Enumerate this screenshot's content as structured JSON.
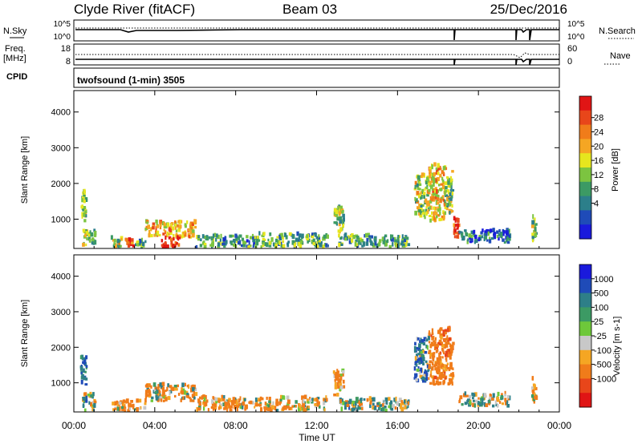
{
  "header": {
    "station": "Clyde River (fitACF)",
    "beam": "Beam 03",
    "date": "25/Dec/2016"
  },
  "nsky": {
    "label": "N.Sky",
    "ticks": [
      "10^5",
      "10^0"
    ],
    "right_ticks": [
      "10^5",
      "10^0"
    ],
    "right_label": "N.Search"
  },
  "freq": {
    "label_top": "Freq.",
    "label_unit": "[MHz]",
    "ticks": [
      "18",
      "8"
    ],
    "right_ticks": [
      "60",
      "0"
    ],
    "right_label": "Nave"
  },
  "cpid": {
    "label": "CPID",
    "text": "twofsound (1-min) 3505"
  },
  "x_axis": {
    "label": "Time UT",
    "ticks": [
      "00:00",
      "04:00",
      "08:00",
      "12:00",
      "16:00",
      "20:00",
      "00:00"
    ]
  },
  "power_panel": {
    "ylabel": "Slant Range [km]",
    "yticks": [
      "4000",
      "3000",
      "2000",
      "1000"
    ],
    "colorbar_label": "Power [dB]",
    "colorbar_ticks": [
      "28",
      "24",
      "20",
      "16",
      "12",
      "8",
      "4"
    ],
    "colors": [
      "#1a1adc",
      "#1f4bb8",
      "#2c7f8a",
      "#3c9a64",
      "#7cc440",
      "#e6e61e",
      "#f5a623",
      "#f07c1a",
      "#e8461a",
      "#e01515"
    ]
  },
  "velocity_panel": {
    "ylabel": "Slant Range [km]",
    "yticks": [
      "4000",
      "3000",
      "2000",
      "1000"
    ],
    "colorbar_label": "Velocity [m s-1]",
    "colorbar_ticks": [
      "1000",
      "500",
      "100",
      "25",
      "-25",
      "-100",
      "-500",
      "-1000"
    ],
    "colors": [
      "#1a1adc",
      "#1f4bb8",
      "#2e7f88",
      "#3c9a64",
      "#6ec83a",
      "#c8c8c8",
      "#f5a623",
      "#f07c1a",
      "#e8461a",
      "#e01515"
    ]
  },
  "chart_data": [
    {
      "type": "heatmap",
      "title": "Beam 03",
      "xlabel": "Time UT",
      "ylabel": "Slant Range [km]",
      "x_range_hours": [
        0,
        24
      ],
      "ylim": [
        180,
        4600
      ],
      "legend": "Power [dB]",
      "color_range": [
        0,
        32
      ],
      "regions": [
        {
          "t0": 0.3,
          "t1": 0.6,
          "r0": 900,
          "r1": 1750,
          "v": 14
        },
        {
          "t0": 0.4,
          "t1": 1.0,
          "r0": 180,
          "r1": 650,
          "v": 14
        },
        {
          "t0": 1.8,
          "t1": 2.3,
          "r0": 180,
          "r1": 450,
          "v": 16
        },
        {
          "t0": 2.5,
          "t1": 2.9,
          "r0": 180,
          "r1": 400,
          "v": 29
        },
        {
          "t0": 3.0,
          "t1": 3.5,
          "r0": 180,
          "r1": 380,
          "v": 12
        },
        {
          "t0": 3.5,
          "t1": 6.0,
          "r0": 450,
          "r1": 900,
          "v": 20
        },
        {
          "t0": 4.3,
          "t1": 5.2,
          "r0": 180,
          "r1": 450,
          "v": 28
        },
        {
          "t0": 6.0,
          "t1": 9.0,
          "r0": 180,
          "r1": 500,
          "v": 10
        },
        {
          "t0": 9.0,
          "t1": 12.5,
          "r0": 180,
          "r1": 550,
          "v": 12
        },
        {
          "t0": 12.8,
          "t1": 13.3,
          "r0": 600,
          "r1": 1300,
          "v": 14
        },
        {
          "t0": 13.0,
          "t1": 16.5,
          "r0": 180,
          "r1": 500,
          "v": 12
        },
        {
          "t0": 16.8,
          "t1": 17.5,
          "r0": 1000,
          "r1": 2200,
          "v": 16
        },
        {
          "t0": 17.5,
          "t1": 18.3,
          "r0": 900,
          "r1": 2500,
          "v": 20
        },
        {
          "t0": 18.3,
          "t1": 18.7,
          "r0": 1100,
          "r1": 2300,
          "v": 14
        },
        {
          "t0": 18.7,
          "t1": 19.0,
          "r0": 400,
          "r1": 1000,
          "v": 28
        },
        {
          "t0": 19.0,
          "t1": 21.5,
          "r0": 300,
          "r1": 650,
          "v": 8
        },
        {
          "t0": 22.6,
          "t1": 22.8,
          "r0": 350,
          "r1": 1100,
          "v": 14
        }
      ]
    },
    {
      "type": "heatmap",
      "title": "Beam 03",
      "xlabel": "Time UT",
      "ylabel": "Slant Range [km]",
      "x_range_hours": [
        0,
        24
      ],
      "ylim": [
        180,
        4600
      ],
      "legend": "Velocity [m s-1]",
      "color_range": [
        -1000,
        1000
      ],
      "regions": [
        {
          "t0": 0.3,
          "t1": 0.6,
          "r0": 900,
          "r1": 1750,
          "v": 300
        },
        {
          "t0": 0.4,
          "t1": 1.0,
          "r0": 180,
          "r1": 650,
          "v": 80
        },
        {
          "t0": 1.8,
          "t1": 3.5,
          "r0": 180,
          "r1": 450,
          "v": -150
        },
        {
          "t0": 3.5,
          "t1": 6.0,
          "r0": 450,
          "r1": 900,
          "v": -80
        },
        {
          "t0": 6.0,
          "t1": 12.5,
          "r0": 180,
          "r1": 550,
          "v": -120
        },
        {
          "t0": 12.8,
          "t1": 13.3,
          "r0": 600,
          "r1": 1300,
          "v": -200
        },
        {
          "t0": 13.0,
          "t1": 16.5,
          "r0": 180,
          "r1": 500,
          "v": 60
        },
        {
          "t0": 16.8,
          "t1": 17.5,
          "r0": 1000,
          "r1": 2200,
          "v": 200
        },
        {
          "t0": 17.5,
          "t1": 18.7,
          "r0": 900,
          "r1": 2500,
          "v": -300
        },
        {
          "t0": 19.0,
          "t1": 21.5,
          "r0": 300,
          "r1": 650,
          "v": 0
        },
        {
          "t0": 22.6,
          "t1": 22.8,
          "r0": 350,
          "r1": 1100,
          "v": -150
        }
      ]
    }
  ]
}
